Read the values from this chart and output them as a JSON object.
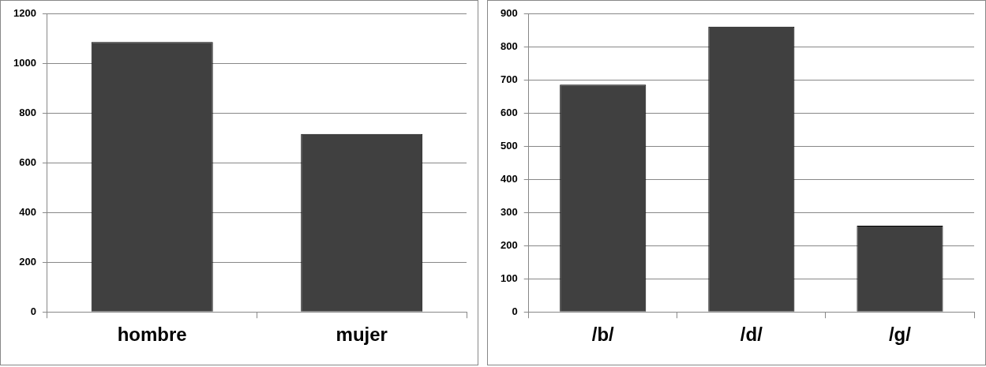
{
  "chart_data": [
    {
      "type": "bar",
      "categories": [
        "hombre",
        "mujer"
      ],
      "values": [
        1085,
        715
      ],
      "color": "#404040",
      "ylim": [
        0,
        1200
      ],
      "yticks": [
        0,
        200,
        400,
        600,
        800,
        1000,
        1200
      ],
      "grid": "y",
      "legend": false
    },
    {
      "type": "bar",
      "categories": [
        "/b/",
        "/d/",
        "/g/"
      ],
      "values": [
        685,
        860,
        260
      ],
      "color": "#404040",
      "ylim": [
        0,
        900
      ],
      "yticks": [
        0,
        100,
        200,
        300,
        400,
        500,
        600,
        700,
        800,
        900
      ],
      "grid": "y",
      "legend": false
    }
  ]
}
